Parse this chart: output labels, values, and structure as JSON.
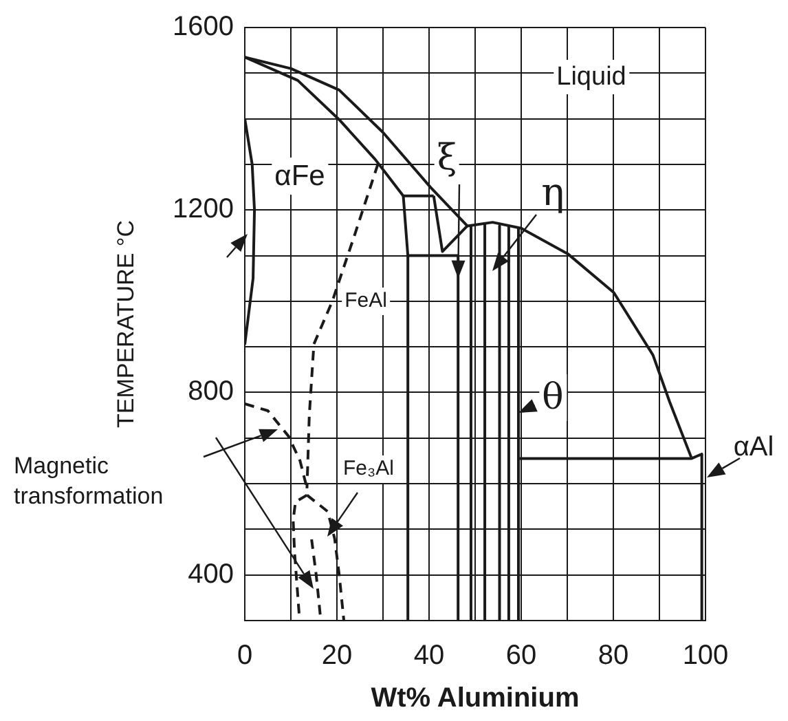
{
  "chart_data": {
    "type": "line",
    "xlabel": "Wt% Aluminium",
    "ylabel": "TEMPERATURE °C",
    "xlim": [
      0,
      100
    ],
    "ylim": [
      300,
      1600
    ],
    "xticks": [
      0,
      {
        "value": 10,
        "label": null
      },
      20,
      {
        "value": 30,
        "label": null
      },
      40,
      {
        "value": 50,
        "label": null
      },
      60,
      {
        "value": 70,
        "label": null
      },
      80,
      {
        "value": 90,
        "label": null
      },
      100
    ],
    "yticks": [
      400,
      {
        "value": 500,
        "label": null
      },
      {
        "value": 600,
        "label": null
      },
      {
        "value": 700,
        "label": null
      },
      800,
      {
        "value": 900,
        "label": null
      },
      {
        "value": 1000,
        "label": null
      },
      {
        "value": 1100,
        "label": null
      },
      1200,
      {
        "value": 1300,
        "label": null
      },
      {
        "value": 1400,
        "label": null
      },
      {
        "value": 1500,
        "label": null
      },
      1600
    ],
    "grid": true,
    "annotations": [
      "Liquid",
      "αFe",
      {
        "text": "ξ",
        "x": 46.3,
        "y": 1050
      },
      "η",
      "FeAl",
      "Fe₃Al",
      "θ",
      "αAl",
      "Magnetic transformation"
    ],
    "series": [
      {
        "color": "#1a1a1a",
        "line_style": "solid",
        "x": [
          0,
          10,
          20.5,
          30,
          40.3,
          48.3,
          53.8,
          60,
          70.1,
          80.1,
          88.6,
          92.2,
          96.9
        ],
        "values": [
          1535,
          1510,
          1463,
          1370,
          1250,
          1165,
          1173,
          1160,
          1104,
          1019,
          882,
          780,
          658
        ]
      },
      {
        "color": "#1a1a1a",
        "line_style": "solid",
        "x": [
          0,
          11.5,
          20.5,
          28.3,
          34.4,
          41
        ],
        "values": [
          1535,
          1484,
          1398,
          1311,
          1231,
          1231
        ]
      },
      {
        "color": "#1a1a1a",
        "line_style": "solid",
        "x": [
          34.4,
          35.4,
          35.4
        ],
        "values": [
          1231,
          1100,
          300
        ]
      },
      {
        "color": "#1a1a1a",
        "line_style": "solid",
        "x": [
          35.4,
          46.3
        ],
        "values": [
          1100,
          1100
        ]
      },
      {
        "color": "#1a1a1a",
        "line_style": "solid",
        "x": [
          41,
          42.9,
          48.3
        ],
        "values": [
          1231,
          1109,
          1165
        ]
      },
      {
        "color": "#1a1a1a",
        "line_style": "solid",
        "x": [
          46.3,
          46.3
        ],
        "values": [
          1100,
          300
        ]
      },
      {
        "color": "#1a1a1a",
        "line_style": "solid",
        "x": [
          49.1,
          49.1
        ],
        "values": [
          1165,
          300
        ]
      },
      {
        "color": "#1a1a1a",
        "line_style": "solid",
        "x": [
          52.1,
          52.1
        ],
        "values": [
          1170,
          300
        ]
      },
      {
        "color": "#1a1a1a",
        "line_style": "solid",
        "x": [
          55.3,
          55.3
        ],
        "values": [
          1165,
          300
        ]
      },
      {
        "color": "#1a1a1a",
        "line_style": "solid",
        "x": [
          57.3,
          57.3
        ],
        "values": [
          1165,
          300
        ]
      },
      {
        "color": "#1a1a1a",
        "line_style": "solid",
        "x": [
          59.4,
          59.4
        ],
        "values": [
          1160,
          300
        ]
      },
      {
        "color": "#1a1a1a",
        "line_style": "solid",
        "x": [
          59.4,
          96.9,
          99.2,
          99.2
        ],
        "values": [
          655,
          655,
          665,
          300
        ]
      },
      {
        "color": "#1a1a1a",
        "line_style": "solid",
        "x": [
          0,
          1.6,
          2.1,
          1.8,
          0
        ],
        "values": [
          1400,
          1300,
          1200,
          1050,
          905
        ]
      },
      {
        "color": "#1a1a1a",
        "line_style": "dashed",
        "x": [
          28.9,
          24,
          19,
          15,
          14,
          13.5
        ],
        "values": [
          1301,
          1150,
          1000,
          906,
          750,
          590
        ]
      },
      {
        "color": "#1a1a1a",
        "line_style": "dashed",
        "x": [
          0,
          5,
          9.5,
          12,
          13.5
        ],
        "values": [
          775,
          760,
          704,
          650,
          590
        ]
      },
      {
        "color": "#1a1a1a",
        "line_style": "dashed",
        "x": [
          13.5,
          11,
          10.5,
          10.8,
          11.9
        ],
        "values": [
          575,
          560,
          520,
          450,
          300
        ]
      },
      {
        "color": "#1a1a1a",
        "line_style": "dashed",
        "x": [
          13.5,
          18,
          19.5,
          20.5,
          21.5
        ],
        "values": [
          575,
          539,
          480,
          400,
          300
        ]
      },
      {
        "color": "#1a1a1a",
        "line_style": "dashed",
        "x": [
          14.5,
          15.5,
          16.5
        ],
        "values": [
          478,
          400,
          300
        ]
      }
    ]
  }
}
